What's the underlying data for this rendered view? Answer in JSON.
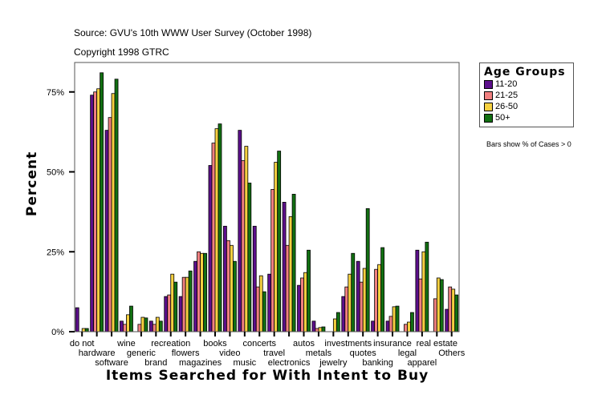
{
  "header": {
    "source": "Source: GVU's 10th WWW User Survey (October 1998)",
    "copyright": "Copyright 1998 GTRC"
  },
  "legend": {
    "title": "Age Groups",
    "items": [
      {
        "label": "11-20",
        "color": "#5c0f8b"
      },
      {
        "label": "21-25",
        "color": "#f08080"
      },
      {
        "label": "26-50",
        "color": "#f5d040"
      },
      {
        "label": "50+",
        "color": "#127012"
      }
    ],
    "note": "Bars show % of Cases > 0"
  },
  "chart_data": {
    "type": "bar",
    "title": "Items Searched for With Intent to Buy",
    "xlabel": "Items Searched for With Intent to Buy",
    "ylabel": "Percent",
    "ylim": [
      0,
      80
    ],
    "yticks": [
      "0%",
      "25%",
      "50%",
      "75%"
    ],
    "grid": false,
    "legend_position": "right",
    "categories": [
      "do not",
      "hardware",
      "software",
      "wine",
      "generic",
      "brand",
      "recreation",
      "flowers",
      "magazines",
      "books",
      "video",
      "music",
      "concerts",
      "travel",
      "electronics",
      "autos",
      "metals",
      "jewelry",
      "investments",
      "quotes",
      "banking",
      "insurance",
      "legal",
      "apparel",
      "real estate",
      "Others"
    ],
    "series": [
      {
        "name": "11-20",
        "color": "#5c0f8b",
        "values": [
          7.5,
          74,
          63,
          3.3,
          0,
          3.3,
          11,
          11,
          22,
          52,
          33,
          63,
          33,
          18,
          40.5,
          14.5,
          3.3,
          0,
          11,
          22,
          3.3,
          3.3,
          0,
          25.5,
          0,
          7
        ]
      },
      {
        "name": "21-25",
        "color": "#f08080",
        "values": [
          0,
          75,
          67,
          2.3,
          2.3,
          2.3,
          11.5,
          17,
          25,
          59,
          28.5,
          53.5,
          14,
          44.5,
          27,
          16.8,
          1,
          0,
          14,
          15.5,
          19.5,
          4.8,
          2.3,
          16.5,
          10.3,
          14
        ]
      },
      {
        "name": "26-50",
        "color": "#f5d040",
        "values": [
          1,
          76,
          74.5,
          5.3,
          4.5,
          4.5,
          18,
          17,
          24.5,
          63.5,
          27,
          58,
          17.5,
          53,
          36,
          18.5,
          1.3,
          4,
          18,
          19.8,
          21,
          7.8,
          3,
          25,
          16.8,
          13.3
        ]
      },
      {
        "name": "50+",
        "color": "#127012",
        "values": [
          1,
          81,
          79,
          8,
          4.3,
          3.3,
          15.5,
          19,
          24.5,
          65,
          22,
          46.5,
          12.5,
          56.5,
          43,
          25.5,
          1.5,
          6,
          24.5,
          38.5,
          26.3,
          8,
          6,
          28,
          16.3,
          11.5
        ]
      }
    ],
    "label_rows": [
      [
        "do not",
        "wine",
        "recreation",
        "books",
        "concerts",
        "autos",
        "investments",
        "insurance",
        "real estate"
      ],
      [
        "hardware",
        "generic",
        "flowers",
        "video",
        "travel",
        "metals",
        "quotes",
        "legal",
        "Others"
      ],
      [
        "software",
        "brand",
        "magazines",
        "music",
        "electronics",
        "jewelry",
        "banking",
        "apparel"
      ]
    ]
  }
}
